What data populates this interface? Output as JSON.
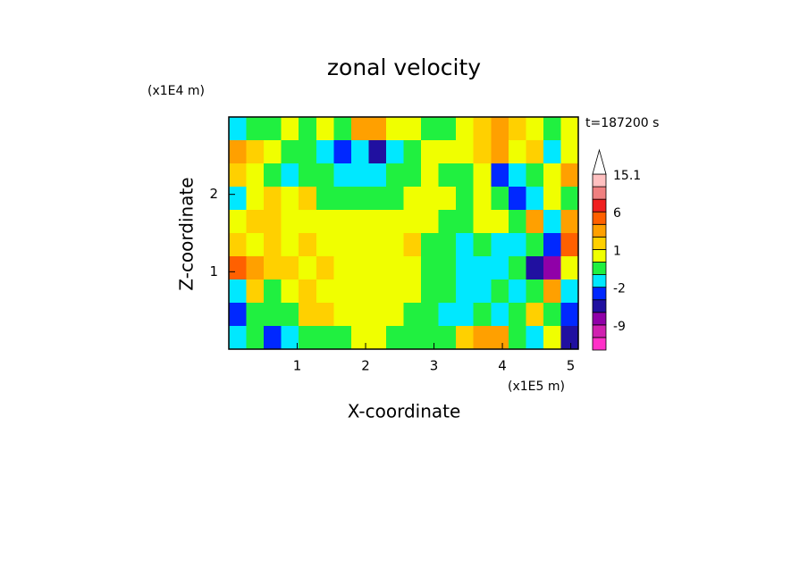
{
  "chart_data": {
    "type": "contour",
    "title": "zonal velocity",
    "x_label": "X-coordinate",
    "y_label": "Z-coordinate",
    "x_unit": "(x1E5 m)",
    "y_unit": "(x1E4 m)",
    "time_label": "t=187200 s",
    "xlim": [
      0,
      5.11
    ],
    "xticks": [
      1,
      2,
      3,
      4,
      5
    ],
    "ylim": [
      0,
      3
    ],
    "yticks": [
      1,
      2
    ],
    "levels": [
      -15,
      -12,
      -9,
      -6,
      -4,
      -2,
      -1,
      0,
      1,
      2,
      3,
      6,
      9,
      12,
      15.1
    ],
    "colors": [
      "#ff30c8",
      "#d020b0",
      "#9000a8",
      "#2010a0",
      "#0028ff",
      "#00e8ff",
      "#20f040",
      "#f0ff00",
      "#ffd000",
      "#ffa000",
      "#ff6000",
      "#f02020",
      "#f08080",
      "#ffc0c0"
    ],
    "colorbar_ticks": [
      15.1,
      6,
      1,
      -2,
      -9
    ],
    "z": [
      [
        -1.5,
        -0.5,
        -0.5,
        0.5,
        -0.5,
        0.5,
        -0.5,
        2.5,
        2.5,
        0.5,
        0.5,
        -0.5,
        -0.5,
        0.5,
        1.5,
        2.5,
        1.5,
        0.5,
        -0.5,
        0.5
      ],
      [
        2.5,
        1.5,
        0.5,
        -0.5,
        -0.5,
        -1.5,
        -3,
        -1.5,
        -5,
        -1.5,
        -0.5,
        0.5,
        0.5,
        0.5,
        1.5,
        2.5,
        0.5,
        1.5,
        -1.5,
        0.5
      ],
      [
        1.5,
        0.5,
        -0.5,
        -1.5,
        -0.5,
        -0.5,
        -1.5,
        -1.5,
        -1.5,
        -0.5,
        -0.5,
        0.5,
        -0.5,
        -0.5,
        0.5,
        -3,
        -1.5,
        -0.5,
        0.5,
        2.5
      ],
      [
        -1.5,
        0.5,
        1.5,
        0.5,
        1.5,
        -0.5,
        -0.5,
        -0.5,
        -0.5,
        -0.5,
        0.5,
        0.5,
        0.5,
        -0.5,
        0.5,
        -0.5,
        -3,
        -1.5,
        0.5,
        -0.5
      ],
      [
        0.5,
        1.5,
        1.5,
        0.5,
        0.5,
        0.5,
        0.5,
        0.5,
        0.5,
        0.5,
        0.5,
        0.5,
        -0.5,
        -0.5,
        0.5,
        0.5,
        -0.5,
        2.5,
        -1.5,
        2.5
      ],
      [
        1.5,
        0.5,
        1.5,
        0.5,
        1.5,
        0.5,
        0.5,
        0.5,
        0.5,
        0.5,
        1.5,
        -0.5,
        -0.5,
        -1.5,
        -0.5,
        -1.5,
        -1.5,
        -0.5,
        -3,
        4
      ],
      [
        4,
        2.5,
        1.5,
        1.5,
        0.5,
        1.5,
        0.5,
        0.5,
        0.5,
        0.5,
        0.5,
        -0.5,
        -0.5,
        -1.5,
        -1.5,
        -1.5,
        -0.5,
        -5,
        -8,
        0.5
      ],
      [
        -1.5,
        1.5,
        -0.5,
        0.5,
        1.5,
        0.5,
        0.5,
        0.5,
        0.5,
        0.5,
        0.5,
        -0.5,
        -0.5,
        -1.5,
        -1.5,
        -0.5,
        -1.5,
        -0.5,
        2.5,
        -1.5
      ],
      [
        -3,
        -0.5,
        -0.5,
        -0.5,
        1.5,
        1.5,
        0.5,
        0.5,
        0.5,
        0.5,
        -0.5,
        -0.5,
        -1.5,
        -1.5,
        -0.5,
        -1.5,
        -0.5,
        1.5,
        -0.5,
        -3
      ],
      [
        -1.5,
        -0.5,
        -3,
        -1.5,
        -0.5,
        -0.5,
        -0.5,
        0.5,
        0.5,
        -0.5,
        -0.5,
        -0.5,
        -0.5,
        1.5,
        2.5,
        2.5,
        -0.5,
        -1.5,
        0.5,
        -5
      ]
    ]
  }
}
